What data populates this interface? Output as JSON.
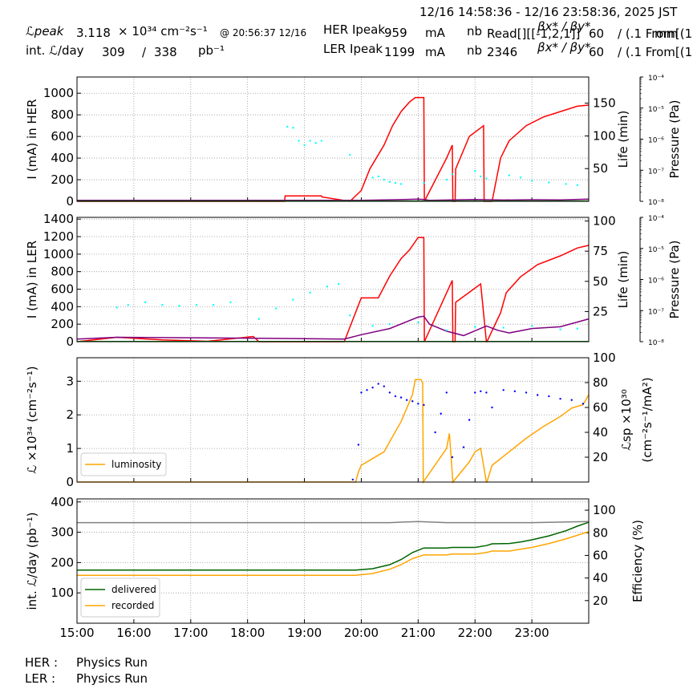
{
  "header": {
    "time_range": "12/16 14:58:36 - 12/16 23:58:36, 2025 JST",
    "lpeak_label": "ℒpeak",
    "lpeak_value": "3.118",
    "lpeak_unit": "× 10³⁴ cm⁻²s⁻¹",
    "lpeak_time": "@ 20:56:37 12/16",
    "intl_label": "int. ℒ/day",
    "intl_value": "309",
    "intl_sep": "/",
    "intl_total": "338",
    "intl_unit": "pb⁻¹",
    "her_ipeak_label": "HER Ipeak",
    "her_ipeak_value": "959",
    "her_ipeak_unit": "mA",
    "ler_ipeak_label": "LER Ipeak",
    "ler_ipeak_value": "1199",
    "ler_ipeak_unit": "mA",
    "nb_label": "nb",
    "her_nb_value": "Read[][[-1,2,1]]",
    "ler_nb_value": "2346",
    "beta_label_1": "βx* / βy*",
    "beta_label_2": "βx* / βy*",
    "beta_value_1": "60",
    "beta_value_2": "60",
    "beta_unit_1": "/ (.1 From[(1",
    "beta_unit_2": "/ (.1 From[(1",
    "beta_overflow": "mm"
  },
  "footer": {
    "her_label": "HER :",
    "her_mode": "Physics Run",
    "ler_label": "LER :",
    "ler_mode": "Physics Run"
  },
  "chart_data": [
    {
      "type": "line",
      "id": "her",
      "ylabel": "I (mA) in HER",
      "ylabel_right": "Life (min)",
      "ylabel_pressure": "Pressure (Pa)",
      "xlim": [
        15.0,
        24.0
      ],
      "ylim": [
        0,
        1150
      ],
      "yticks": [
        0,
        200,
        400,
        600,
        800,
        1000
      ],
      "life_ylim": [
        0,
        190
      ],
      "life_ticks": [
        50,
        100,
        150
      ],
      "pressure_ticks": [
        "10⁻⁸",
        "10⁻⁷",
        "10⁻⁶",
        "10⁻⁵",
        "10⁻⁴"
      ],
      "series": [
        {
          "role": "current",
          "color": "#ff0000",
          "x": [
            15.0,
            18.65,
            18.66,
            19.3,
            19.31,
            19.8,
            20.0,
            20.15,
            20.4,
            20.55,
            20.7,
            20.85,
            20.95,
            21.1,
            21.11,
            21.5,
            21.6,
            21.61,
            21.65,
            21.66,
            21.9,
            22.15,
            22.16,
            22.3,
            22.45,
            22.6,
            22.9,
            23.2,
            23.5,
            23.8,
            24.0
          ],
          "y": [
            0,
            0,
            50,
            50,
            40,
            0,
            100,
            300,
            520,
            700,
            830,
            920,
            960,
            960,
            0,
            400,
            520,
            0,
            0,
            300,
            600,
            700,
            0,
            0,
            400,
            560,
            700,
            780,
            830,
            880,
            890
          ]
        },
        {
          "role": "life",
          "color": "#800080",
          "x": [
            15.0,
            18.0,
            20.0,
            20.5,
            21.0,
            21.1,
            21.2,
            21.6,
            22.0,
            22.3,
            22.5,
            23.0,
            23.5,
            24.0
          ],
          "y": [
            10,
            10,
            10,
            14,
            20,
            16,
            10,
            13,
            17,
            14,
            12,
            15,
            13,
            20
          ]
        },
        {
          "role": "pressure",
          "color": "#00ffff",
          "style": "dots",
          "x": [
            18.7,
            18.8,
            18.9,
            19.0,
            19.1,
            19.2,
            19.3,
            19.8,
            20.2,
            20.3,
            20.4,
            20.5,
            20.6,
            20.7,
            21.1,
            21.5,
            21.6,
            22.0,
            22.1,
            22.2,
            22.6,
            22.8,
            23.0,
            23.3,
            23.6,
            23.8
          ],
          "y": [
            690,
            680,
            560,
            520,
            560,
            540,
            560,
            430,
            220,
            230,
            200,
            180,
            170,
            160,
            170,
            200,
            250,
            280,
            230,
            210,
            240,
            220,
            190,
            175,
            160,
            150
          ]
        },
        {
          "role": "other",
          "color": "#008000",
          "x": [
            15.0,
            24.0
          ],
          "y": [
            3,
            3
          ]
        }
      ]
    },
    {
      "type": "line",
      "id": "ler",
      "ylabel": "I (mA) in LER",
      "ylabel_right": "Life (min)",
      "ylabel_pressure": "Pressure (Pa)",
      "xlim": [
        15.0,
        24.0
      ],
      "ylim": [
        0,
        1420
      ],
      "yticks": [
        0,
        200,
        400,
        600,
        800,
        1000,
        1200,
        1400
      ],
      "life_ylim": [
        0,
        103
      ],
      "life_ticks": [
        25,
        50,
        75,
        100
      ],
      "pressure_ticks": [
        "10⁻⁸",
        "10⁻⁷",
        "10⁻⁶",
        "10⁻⁵",
        "10⁻⁴"
      ],
      "series": [
        {
          "role": "current",
          "color": "#ff0000",
          "x": [
            15.0,
            15.7,
            16.5,
            17.3,
            18.1,
            18.2,
            19.0,
            19.7,
            20.0,
            20.3,
            20.5,
            20.7,
            20.85,
            21.0,
            21.1,
            21.11,
            21.6,
            21.61,
            21.65,
            21.66,
            22.1,
            22.2,
            22.21,
            22.45,
            22.55,
            22.8,
            23.1,
            23.5,
            23.8,
            24.0
          ],
          "y": [
            0,
            50,
            20,
            5,
            60,
            0,
            0,
            0,
            500,
            500,
            750,
            950,
            1050,
            1190,
            1190,
            0,
            700,
            0,
            0,
            450,
            660,
            0,
            0,
            330,
            560,
            740,
            880,
            980,
            1070,
            1100
          ]
        },
        {
          "role": "life",
          "color": "#800080",
          "x": [
            15.0,
            15.7,
            18.0,
            19.7,
            20.0,
            20.5,
            21.0,
            21.1,
            21.2,
            21.5,
            21.8,
            22.2,
            22.4,
            22.6,
            23.0,
            23.5,
            24.0
          ],
          "y": [
            30,
            50,
            40,
            30,
            80,
            150,
            280,
            290,
            200,
            120,
            70,
            180,
            130,
            100,
            150,
            170,
            260
          ]
        },
        {
          "role": "pressure",
          "color": "#00ffff",
          "style": "dots",
          "x": [
            15.7,
            15.9,
            16.2,
            16.5,
            16.8,
            17.1,
            17.4,
            17.7,
            18.2,
            18.5,
            18.8,
            19.1,
            19.4,
            19.6,
            19.8,
            20.2,
            20.5,
            21.0,
            21.5,
            22.0,
            22.5,
            23.0,
            23.5,
            23.8
          ],
          "y": [
            390,
            420,
            450,
            420,
            410,
            420,
            420,
            450,
            260,
            380,
            480,
            560,
            630,
            660,
            300,
            180,
            200,
            220,
            130,
            170,
            160,
            180,
            140,
            150
          ]
        },
        {
          "role": "other",
          "color": "#008000",
          "x": [
            15.0,
            24.0
          ],
          "y": [
            2,
            2
          ]
        }
      ]
    },
    {
      "type": "line",
      "id": "lumi",
      "ylabel": "ℒ ×10³⁴ (cm⁻²s⁻¹)",
      "ylabel_right": "ℒsp ×10³⁰",
      "ylabel_right2": "(cm⁻²s⁻¹/mA²)",
      "legend": [
        "luminosity"
      ],
      "legend_loc": "lower left",
      "xlim": [
        15.0,
        24.0
      ],
      "ylim": [
        0,
        3.7
      ],
      "yticks": [
        0,
        1,
        2,
        3
      ],
      "spec_ylim": [
        0,
        100
      ],
      "spec_ticks": [
        20,
        40,
        60,
        80,
        100
      ],
      "series": [
        {
          "role": "luminosity",
          "color": "#ffa500",
          "x": [
            15.0,
            19.9,
            19.95,
            20.0,
            20.2,
            20.4,
            20.55,
            20.7,
            20.8,
            20.9,
            20.95,
            21.05,
            21.08,
            21.09,
            21.5,
            21.55,
            21.6,
            21.61,
            21.9,
            22.0,
            22.1,
            22.2,
            22.21,
            22.3,
            22.6,
            22.9,
            23.2,
            23.5,
            23.7,
            23.9,
            24.0
          ],
          "y": [
            0,
            0,
            0.3,
            0.5,
            0.7,
            0.9,
            1.35,
            1.8,
            2.2,
            2.6,
            3.05,
            3.05,
            2.95,
            0,
            1.0,
            1.45,
            0.25,
            0,
            0.6,
            0.9,
            1.0,
            0,
            0,
            0.5,
            0.9,
            1.3,
            1.65,
            1.95,
            2.2,
            2.3,
            2.6
          ]
        },
        {
          "role": "specific",
          "color": "#0000ff",
          "style": "dots",
          "x": [
            19.85,
            19.95,
            20.0,
            20.1,
            20.2,
            20.3,
            20.4,
            20.5,
            20.6,
            20.7,
            20.8,
            20.9,
            21.0,
            21.1,
            21.3,
            21.4,
            21.5,
            21.6,
            21.8,
            21.9,
            22.0,
            22.1,
            22.2,
            22.3,
            22.5,
            22.7,
            22.9,
            23.1,
            23.3,
            23.5,
            23.7,
            23.9
          ],
          "y": [
            2,
            30,
            72,
            74,
            76,
            79,
            77,
            72,
            69,
            68,
            66,
            65,
            63,
            62,
            40,
            55,
            72,
            20,
            28,
            50,
            72,
            73,
            72,
            60,
            74,
            73,
            72,
            70,
            69,
            67,
            66,
            63
          ]
        }
      ]
    },
    {
      "type": "line",
      "id": "intlumi",
      "ylabel": "int. ℒ/day (pb⁻¹)",
      "ylabel_right": "Efficiency (%)",
      "legend": [
        "delivered",
        "recorded"
      ],
      "legend_loc": "lower left",
      "xlim": [
        15.0,
        24.0
      ],
      "xticks": [
        "15:00",
        "16:00",
        "17:00",
        "18:00",
        "19:00",
        "20:00",
        "21:00",
        "22:00",
        "23:00"
      ],
      "ylim": [
        0,
        410
      ],
      "yticks": [
        100,
        200,
        300,
        400
      ],
      "eff_ylim": [
        0,
        110
      ],
      "eff_ticks": [
        20,
        40,
        60,
        80,
        100
      ],
      "series": [
        {
          "name": "delivered",
          "color": "#006400",
          "x": [
            15.0,
            19.9,
            20.2,
            20.5,
            20.7,
            20.9,
            21.1,
            21.5,
            21.6,
            22.0,
            22.2,
            22.3,
            22.6,
            22.8,
            23.0,
            23.3,
            23.6,
            23.8,
            24.0
          ],
          "y": [
            175,
            175,
            180,
            193,
            210,
            233,
            248,
            248,
            250,
            250,
            256,
            262,
            263,
            268,
            275,
            288,
            305,
            320,
            333
          ]
        },
        {
          "name": "recorded",
          "color": "#ffa500",
          "x": [
            15.0,
            19.9,
            20.2,
            20.5,
            20.7,
            20.9,
            21.1,
            21.5,
            21.6,
            22.0,
            22.2,
            22.3,
            22.6,
            22.8,
            23.0,
            23.3,
            23.6,
            23.8,
            24.0
          ],
          "y": [
            158,
            158,
            164,
            178,
            193,
            213,
            225,
            225,
            228,
            228,
            233,
            238,
            238,
            244,
            250,
            263,
            278,
            290,
            302
          ]
        },
        {
          "role": "efficiency",
          "color": "#808080",
          "x": [
            15.0,
            20.0,
            20.5,
            21.0,
            21.5,
            22.0,
            22.5,
            23.0,
            24.0
          ],
          "y": [
            89,
            89,
            89,
            90,
            89,
            89,
            89,
            89,
            90
          ]
        }
      ]
    }
  ]
}
